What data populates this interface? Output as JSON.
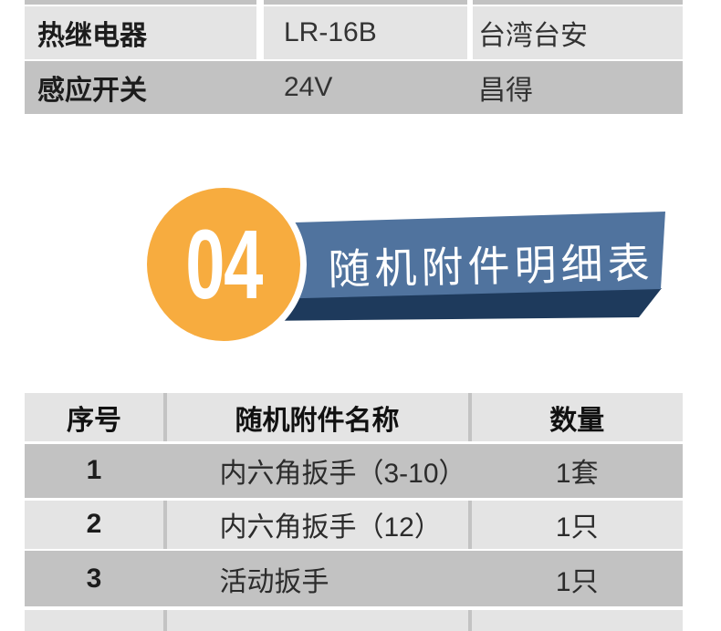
{
  "colors": {
    "row_light": "#e4e4e4",
    "row_dark": "#c2c2c2",
    "banner_blue": "#50739e",
    "banner_navy": "#1e3a5c",
    "badge_orange": "#f7ac3f"
  },
  "spec_table": {
    "rows": [
      {
        "name": "热继电器",
        "model": "LR-16B",
        "brand": "台湾台安"
      },
      {
        "name": "感应开关",
        "model": "24V",
        "brand": "昌得"
      }
    ]
  },
  "section_header": {
    "number": "04",
    "title": "随机附件明细表"
  },
  "accessories_table": {
    "headers": [
      "序号",
      "随机附件名称",
      "数量"
    ],
    "rows": [
      {
        "no": "1",
        "name": "内六角扳手（3-10）",
        "qty": "1套"
      },
      {
        "no": "2",
        "name": "内六角扳手（12）",
        "qty": "1只"
      },
      {
        "no": "3",
        "name": "活动扳手",
        "qty": "1只"
      },
      {
        "no": "",
        "name": "",
        "qty": ""
      }
    ]
  }
}
